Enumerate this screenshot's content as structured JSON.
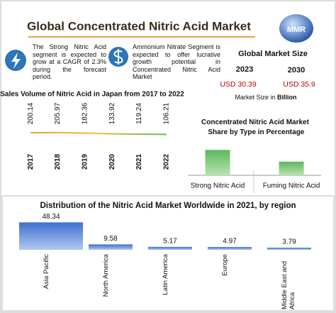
{
  "title": "Global Concentrated Nitric Acid Market",
  "logo": "MMR",
  "notes": [
    "The Strong Nitric Acid segment is expected to grow at a CAGR of 2.3% during the forecast period.",
    "Ammonium Nitrate Segment is expected to offer lucrative growth potential in Concentrated Nitric Acid Market"
  ],
  "market_size": {
    "title": "Global Market Size",
    "years": [
      "2023",
      "2030"
    ],
    "values": [
      "USD 30.39",
      "USD 35.9"
    ],
    "caption": "Market Size in",
    "unit": "Billion"
  },
  "chart_data": [
    {
      "type": "line",
      "title": "Sales Volume of Nitric Acid in Japan from 2017 to 2022",
      "categories": [
        "2017",
        "2018",
        "2019",
        "2020",
        "2021",
        "2022"
      ],
      "values": [
        200.14,
        205.97,
        182.36,
        133.92,
        119.24,
        106.21
      ],
      "colors": [
        "#f29b38",
        "#e5c040",
        "#5cb85c"
      ],
      "ylim": [
        0,
        3000
      ]
    },
    {
      "type": "bar",
      "title": "Concentrated Nitric Acid Market Share by Type in Percentage",
      "categories": [
        "Strong Nitric Acid",
        "Fuming Nitric Acid"
      ],
      "values": [
        65,
        35
      ],
      "colors": [
        "#5cb85c",
        "#b9e3b0"
      ],
      "ylim": [
        0,
        100
      ]
    },
    {
      "type": "bar",
      "title": "Distribution of the Nitric Acid Market Worldwide in 2021, by region",
      "categories": [
        "Asia Pacific",
        "North America",
        "Latin America",
        "Europe",
        "Middle East and Africa"
      ],
      "values": [
        48.34,
        9.58,
        5.17,
        4.97,
        3.79
      ],
      "colors": [
        "#3f6fd0",
        "#b3c8ef"
      ],
      "ylim": [
        0,
        50
      ]
    }
  ]
}
